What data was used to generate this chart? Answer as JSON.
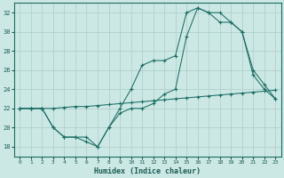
{
  "xlabel": "Humidex (Indice chaleur)",
  "bg_color": "#cce8e4",
  "grid_color": "#aaccca",
  "line_color": "#1a6e64",
  "xlim": [
    -0.5,
    23.5
  ],
  "ylim": [
    17,
    33
  ],
  "yticks": [
    18,
    20,
    22,
    24,
    26,
    28,
    30,
    32
  ],
  "xticks": [
    0,
    1,
    2,
    3,
    4,
    5,
    6,
    7,
    8,
    9,
    10,
    11,
    12,
    13,
    14,
    15,
    16,
    17,
    18,
    19,
    20,
    21,
    22,
    23
  ],
  "line1_x": [
    0,
    1,
    2,
    3,
    4,
    5,
    6,
    7,
    8,
    9,
    10,
    11,
    12,
    13,
    14,
    15,
    16,
    17,
    18,
    19,
    20,
    21,
    22,
    23
  ],
  "line1_y": [
    22,
    22,
    22,
    20,
    19,
    19,
    18.5,
    18,
    20,
    21.5,
    22,
    22,
    22.5,
    23.5,
    24,
    29.5,
    32.5,
    32,
    32,
    31,
    30,
    25.5,
    24,
    23
  ],
  "line2_x": [
    0,
    1,
    2,
    3,
    4,
    5,
    6,
    7,
    8,
    9,
    10,
    11,
    12,
    13,
    14,
    15,
    16,
    17,
    18,
    19,
    20,
    21,
    22,
    23
  ],
  "line2_y": [
    22,
    22,
    22,
    20,
    19,
    19,
    19,
    18,
    20,
    22,
    24,
    26.5,
    27,
    27,
    27.5,
    32,
    32.5,
    32,
    31,
    31,
    30,
    26,
    24.5,
    23
  ],
  "line3_x": [
    0,
    1,
    2,
    3,
    4,
    5,
    6,
    7,
    8,
    9,
    10,
    11,
    12,
    13,
    14,
    15,
    16,
    17,
    18,
    19,
    20,
    21,
    22,
    23
  ],
  "line3_y": [
    22,
    22,
    22,
    22,
    22.1,
    22.2,
    22.2,
    22.3,
    22.4,
    22.5,
    22.6,
    22.7,
    22.8,
    22.9,
    23,
    23.1,
    23.2,
    23.3,
    23.4,
    23.5,
    23.6,
    23.7,
    23.8,
    23.9
  ]
}
